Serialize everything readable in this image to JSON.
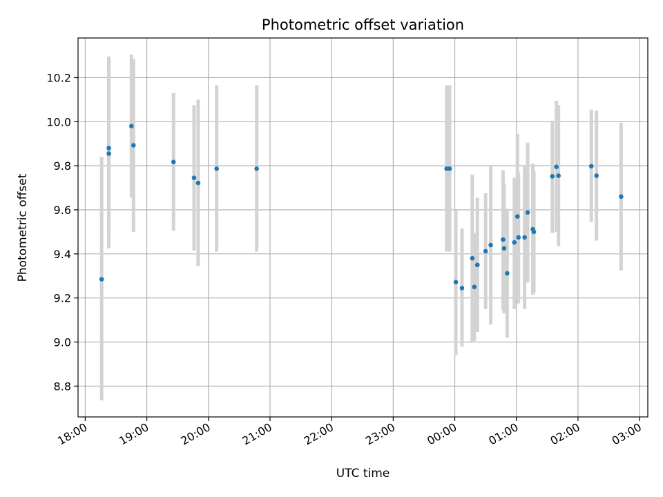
{
  "chart_data": {
    "type": "scatter",
    "title": "Photometric offset variation",
    "xlabel": "UTC time",
    "ylabel": "Photometric offset",
    "grid": true,
    "x_unit": "time (HH:MM, UTC, night spanning two dates)",
    "xlim": [
      "17:53",
      "03:08"
    ],
    "ylim": [
      8.66,
      10.38
    ],
    "x_ticks": [
      "18:00",
      "19:00",
      "20:00",
      "21:00",
      "22:00",
      "23:00",
      "00:00",
      "01:00",
      "02:00",
      "03:00"
    ],
    "y_ticks": [
      "8.8",
      "9.0",
      "9.2",
      "9.4",
      "9.6",
      "9.8",
      "10.0",
      "10.2"
    ],
    "colors": {
      "point": "#1f77b4",
      "error_bar": "#d3d3d3"
    },
    "series": [
      {
        "points": [
          {
            "x": "18:16",
            "y": 9.285,
            "yerr_low": 8.735,
            "yerr_high": 9.84
          },
          {
            "x": "18:23",
            "y": 9.855,
            "yerr_low": 9.47,
            "yerr_high": 10.295
          },
          {
            "x": "18:23",
            "y": 9.88,
            "yerr_low": 9.425,
            "yerr_high": 10.295
          },
          {
            "x": "18:45",
            "y": 9.98,
            "yerr_low": 9.655,
            "yerr_high": 10.305
          },
          {
            "x": "18:47",
            "y": 9.893,
            "yerr_low": 9.5,
            "yerr_high": 10.285
          },
          {
            "x": "19:26",
            "y": 9.817,
            "yerr_low": 9.505,
            "yerr_high": 10.13
          },
          {
            "x": "19:46",
            "y": 9.745,
            "yerr_low": 9.415,
            "yerr_high": 10.075
          },
          {
            "x": "19:50",
            "y": 9.722,
            "yerr_low": 9.345,
            "yerr_high": 10.1
          },
          {
            "x": "20:08",
            "y": 9.787,
            "yerr_low": 9.41,
            "yerr_high": 10.165
          },
          {
            "x": "20:47",
            "y": 9.787,
            "yerr_low": 9.41,
            "yerr_high": 10.165
          },
          {
            "x": "23:52",
            "y": 9.787,
            "yerr_low": 9.41,
            "yerr_high": 10.165
          },
          {
            "x": "23:55",
            "y": 9.787,
            "yerr_low": 9.41,
            "yerr_high": 10.165
          },
          {
            "x": "00:01",
            "y": 9.272,
            "yerr_low": 8.94,
            "yerr_high": 9.6
          },
          {
            "x": "00:07",
            "y": 9.245,
            "yerr_low": 8.98,
            "yerr_high": 9.515
          },
          {
            "x": "00:17",
            "y": 9.38,
            "yerr_low": 9.0,
            "yerr_high": 9.76
          },
          {
            "x": "00:19",
            "y": 9.25,
            "yerr_low": 9.005,
            "yerr_high": 9.495
          },
          {
            "x": "00:22",
            "y": 9.35,
            "yerr_low": 9.045,
            "yerr_high": 9.655
          },
          {
            "x": "00:30",
            "y": 9.412,
            "yerr_low": 9.15,
            "yerr_high": 9.675
          },
          {
            "x": "00:35",
            "y": 9.44,
            "yerr_low": 9.08,
            "yerr_high": 9.8
          },
          {
            "x": "00:47",
            "y": 9.465,
            "yerr_low": 9.145,
            "yerr_high": 9.78
          },
          {
            "x": "00:48",
            "y": 9.425,
            "yerr_low": 9.13,
            "yerr_high": 9.72
          },
          {
            "x": "00:51",
            "y": 9.312,
            "yerr_low": 9.02,
            "yerr_high": 9.605
          },
          {
            "x": "00:58",
            "y": 9.452,
            "yerr_low": 9.15,
            "yerr_high": 9.745
          },
          {
            "x": "01:01",
            "y": 9.57,
            "yerr_low": 9.195,
            "yerr_high": 9.945
          },
          {
            "x": "01:02",
            "y": 9.475,
            "yerr_low": 9.175,
            "yerr_high": 9.77
          },
          {
            "x": "01:08",
            "y": 9.475,
            "yerr_low": 9.15,
            "yerr_high": 9.8
          },
          {
            "x": "01:11",
            "y": 9.588,
            "yerr_low": 9.27,
            "yerr_high": 9.905
          },
          {
            "x": "01:16",
            "y": 9.512,
            "yerr_low": 9.215,
            "yerr_high": 9.81
          },
          {
            "x": "01:17",
            "y": 9.5,
            "yerr_low": 9.225,
            "yerr_high": 9.775
          },
          {
            "x": "01:35",
            "y": 9.752,
            "yerr_low": 9.495,
            "yerr_high": 10.005
          },
          {
            "x": "01:39",
            "y": 9.795,
            "yerr_low": 9.5,
            "yerr_high": 10.095
          },
          {
            "x": "01:41",
            "y": 9.755,
            "yerr_low": 9.435,
            "yerr_high": 10.075
          },
          {
            "x": "02:13",
            "y": 9.798,
            "yerr_low": 9.545,
            "yerr_high": 10.055
          },
          {
            "x": "02:18",
            "y": 9.755,
            "yerr_low": 9.46,
            "yerr_high": 10.05
          },
          {
            "x": "02:42",
            "y": 9.66,
            "yerr_low": 9.325,
            "yerr_high": 9.995
          }
        ]
      }
    ]
  }
}
